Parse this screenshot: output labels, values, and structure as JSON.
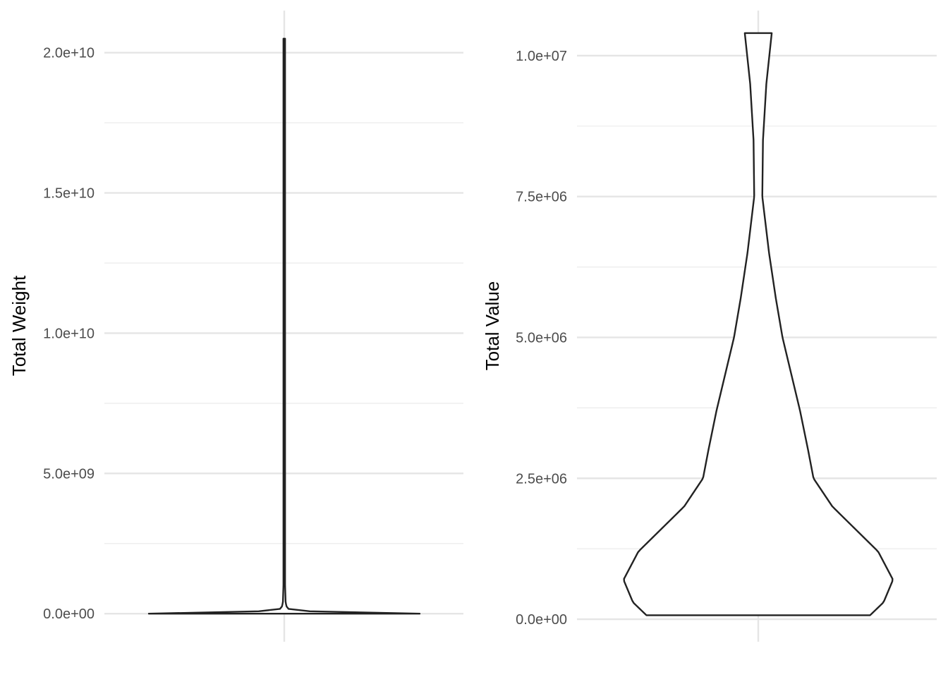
{
  "chart_data": [
    {
      "type": "violin",
      "title": "",
      "xlabel": "",
      "ylabel": "Total Weight",
      "ylim": [
        -1000000000.0,
        21500000000.0
      ],
      "yticks": [
        0,
        5000000000.0,
        10000000000.0,
        15000000000.0,
        20000000000.0
      ],
      "ytick_labels": [
        "0.0e+00",
        "5.0e+09",
        "1.0e+10",
        "1.5e+10",
        "2.0e+10"
      ],
      "grid": true,
      "legend": "none",
      "range": [
        0,
        20500000000.0
      ],
      "density_profile": [
        {
          "y": 0,
          "w": 1.0
        },
        {
          "y": 50000000.0,
          "w": 0.5
        },
        {
          "y": 100000000.0,
          "w": 0.06
        },
        {
          "y": 200000000.0,
          "w": 0.02
        },
        {
          "y": 400000000.0,
          "w": 0.01
        },
        {
          "y": 1000000000.0,
          "w": 0.006
        },
        {
          "y": 20500000000.0,
          "w": 0.006
        }
      ],
      "outline_color": "#222222"
    },
    {
      "type": "violin",
      "title": "",
      "xlabel": "",
      "ylabel": "Total Value",
      "ylim": [
        -400000.0,
        10800000.0
      ],
      "yticks": [
        0,
        2500000.0,
        5000000.0,
        7500000.0,
        10000000.0
      ],
      "ytick_labels": [
        "0.0e+00",
        "2.5e+06",
        "5.0e+06",
        "7.5e+06",
        "1.0e+07"
      ],
      "grid": true,
      "legend": "none",
      "range": [
        70000.0,
        10400000.0
      ],
      "density_profile": [
        {
          "y": 70000.0,
          "w": 0.83
        },
        {
          "y": 300000.0,
          "w": 0.93
        },
        {
          "y": 700000.0,
          "w": 1.0
        },
        {
          "y": 1200000.0,
          "w": 0.89
        },
        {
          "y": 1600000.0,
          "w": 0.72
        },
        {
          "y": 2000000.0,
          "w": 0.55
        },
        {
          "y": 2500000.0,
          "w": 0.41
        },
        {
          "y": 3000000.0,
          "w": 0.37
        },
        {
          "y": 3700000.0,
          "w": 0.31
        },
        {
          "y": 4300000.0,
          "w": 0.25
        },
        {
          "y": 5000000.0,
          "w": 0.18
        },
        {
          "y": 5700000.0,
          "w": 0.13
        },
        {
          "y": 6500000.0,
          "w": 0.08
        },
        {
          "y": 7500000.0,
          "w": 0.03
        },
        {
          "y": 8500000.0,
          "w": 0.035
        },
        {
          "y": 9500000.0,
          "w": 0.06
        },
        {
          "y": 10400000.0,
          "w": 0.1
        }
      ],
      "outline_color": "#222222"
    }
  ]
}
